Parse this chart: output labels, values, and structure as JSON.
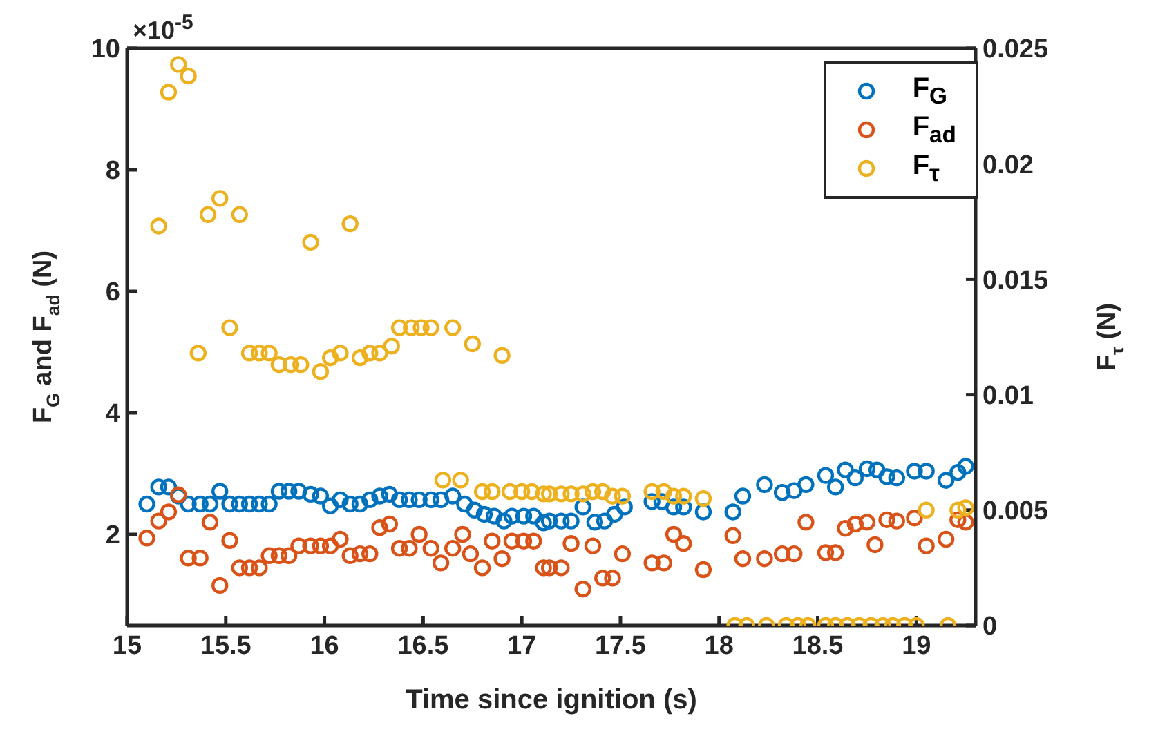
{
  "chart_data": {
    "type": "scatter",
    "xlabel": "Time since ignition (s)",
    "ylabel": "F$_{G}$ and F$_{ad}$ (N)",
    "y2label": "F$_{τ}$ (N)",
    "annotations": [
      "×10$^{-5}$"
    ],
    "xlim": [
      15,
      19.3
    ],
    "xticks": [
      15,
      15.5,
      16,
      16.5,
      17,
      17.5,
      18,
      18.5,
      19
    ],
    "ylim": [
      0.5,
      10
    ],
    "yticks": [
      2,
      4,
      6,
      8,
      10
    ],
    "y2lim": [
      0,
      0.025
    ],
    "y2ticks": [
      0,
      0.005,
      0.01,
      0.015,
      0.02,
      0.025
    ],
    "marker": "circle",
    "legend": "top right",
    "series": [
      {
        "name": "F$_{G}$",
        "color": "#0072bd",
        "x": [
          15.1,
          15.16,
          15.21,
          15.26,
          15.31,
          15.37,
          15.42,
          15.47,
          15.52,
          15.57,
          15.62,
          15.67,
          15.72,
          15.77,
          15.82,
          15.87,
          15.93,
          15.98,
          16.03,
          16.08,
          16.13,
          16.18,
          16.23,
          16.28,
          16.33,
          16.38,
          16.43,
          16.48,
          16.54,
          16.59,
          16.65,
          16.71,
          16.76,
          16.81,
          16.86,
          16.91,
          16.95,
          17.01,
          17.06,
          17.11,
          17.14,
          17.2,
          17.25,
          17.31,
          17.37,
          17.42,
          17.47,
          17.52,
          17.66,
          17.71,
          17.77,
          17.82,
          17.92,
          18.07,
          18.12,
          18.23,
          18.32,
          18.38,
          18.44,
          18.54,
          18.59,
          18.64,
          18.69,
          18.75,
          18.8,
          18.85,
          18.9,
          18.99,
          19.05,
          19.15,
          19.21,
          19.25
        ],
        "values": [
          2.5,
          2.78,
          2.78,
          2.63,
          2.5,
          2.5,
          2.5,
          2.71,
          2.5,
          2.5,
          2.5,
          2.5,
          2.5,
          2.71,
          2.71,
          2.71,
          2.66,
          2.63,
          2.47,
          2.57,
          2.5,
          2.5,
          2.57,
          2.63,
          2.66,
          2.57,
          2.57,
          2.57,
          2.57,
          2.57,
          2.63,
          2.5,
          2.4,
          2.33,
          2.3,
          2.22,
          2.3,
          2.3,
          2.3,
          2.19,
          2.22,
          2.22,
          2.22,
          2.45,
          2.2,
          2.22,
          2.33,
          2.45,
          2.54,
          2.54,
          2.45,
          2.45,
          2.37,
          2.37,
          2.63,
          2.82,
          2.69,
          2.72,
          2.82,
          2.97,
          2.78,
          3.06,
          2.93,
          3.08,
          3.06,
          2.95,
          2.93,
          3.04,
          3.04,
          2.89,
          3.02,
          3.12
        ]
      },
      {
        "name": "F$_{ad}$",
        "color": "#d95319",
        "x": [
          15.1,
          15.16,
          15.21,
          15.26,
          15.31,
          15.37,
          15.42,
          15.47,
          15.52,
          15.57,
          15.62,
          15.67,
          15.72,
          15.77,
          15.82,
          15.87,
          15.93,
          15.98,
          16.03,
          16.08,
          16.13,
          16.18,
          16.23,
          16.28,
          16.33,
          16.38,
          16.43,
          16.48,
          16.54,
          16.59,
          16.65,
          16.7,
          16.74,
          16.8,
          16.85,
          16.9,
          16.95,
          17.01,
          17.06,
          17.11,
          17.14,
          17.2,
          17.25,
          17.31,
          17.36,
          17.41,
          17.46,
          17.51,
          17.66,
          17.72,
          17.77,
          17.82,
          17.92,
          18.07,
          18.12,
          18.23,
          18.32,
          18.38,
          18.44,
          18.54,
          18.59,
          18.64,
          18.69,
          18.75,
          18.79,
          18.85,
          18.9,
          18.99,
          19.05,
          19.15,
          19.21,
          19.25
        ],
        "values": [
          1.94,
          2.22,
          2.37,
          2.65,
          1.61,
          1.61,
          2.2,
          1.16,
          1.9,
          1.45,
          1.45,
          1.45,
          1.65,
          1.65,
          1.65,
          1.81,
          1.81,
          1.81,
          1.81,
          1.92,
          1.65,
          1.68,
          1.68,
          2.11,
          2.17,
          1.77,
          1.77,
          2.0,
          1.77,
          1.53,
          1.77,
          2.0,
          1.68,
          1.45,
          1.89,
          1.6,
          1.89,
          1.89,
          1.89,
          1.45,
          1.45,
          1.45,
          1.85,
          1.1,
          1.81,
          1.28,
          1.28,
          1.68,
          1.53,
          1.53,
          2.0,
          1.85,
          1.42,
          1.98,
          1.6,
          1.6,
          1.68,
          1.68,
          2.2,
          1.7,
          1.7,
          2.1,
          2.17,
          2.2,
          1.83,
          2.24,
          2.22,
          2.27,
          1.81,
          1.92,
          2.24,
          2.2
        ]
      },
      {
        "name": "F$_{τ}$",
        "color": "#edb120",
        "axis": "y2",
        "x": [
          15.16,
          15.21,
          15.26,
          15.31,
          15.36,
          15.41,
          15.47,
          15.52,
          15.57,
          15.62,
          15.67,
          15.72,
          15.77,
          15.83,
          15.88,
          15.93,
          15.98,
          16.03,
          16.08,
          16.13,
          16.18,
          16.23,
          16.28,
          16.34,
          16.38,
          16.44,
          16.49,
          16.54,
          16.65,
          16.75,
          16.9,
          16.6,
          16.69,
          16.8,
          16.85,
          16.94,
          17.0,
          17.05,
          17.11,
          17.14,
          17.2,
          17.25,
          17.31,
          17.36,
          17.41,
          17.46,
          17.51,
          17.66,
          17.72,
          17.77,
          17.82,
          17.92,
          18.08,
          18.14,
          18.24,
          18.34,
          18.4,
          18.45,
          18.54,
          18.59,
          18.65,
          18.71,
          18.77,
          18.83,
          18.88,
          18.94,
          19.0,
          19.05,
          19.16,
          19.21,
          19.25
        ],
        "values": [
          0.0173,
          0.0231,
          0.0243,
          0.0238,
          0.0118,
          0.0178,
          0.0185,
          0.0129,
          0.0178,
          0.0118,
          0.0118,
          0.0118,
          0.0113,
          0.0113,
          0.0113,
          0.0166,
          0.011,
          0.0116,
          0.0118,
          0.0174,
          0.0116,
          0.0118,
          0.0118,
          0.0121,
          0.0129,
          0.0129,
          0.0129,
          0.0129,
          0.0129,
          0.0122,
          0.0117,
          0.0063,
          0.0063,
          0.0058,
          0.0058,
          0.0058,
          0.0058,
          0.0058,
          0.0057,
          0.0057,
          0.0057,
          0.0057,
          0.0057,
          0.0058,
          0.0058,
          0.0056,
          0.0056,
          0.0058,
          0.0058,
          0.0056,
          0.0056,
          0.0055,
          0,
          0,
          0,
          0,
          0,
          0,
          0,
          0,
          0,
          0,
          0,
          0,
          0,
          0,
          0,
          0.005,
          0,
          0.005,
          0.0051
        ]
      }
    ]
  }
}
